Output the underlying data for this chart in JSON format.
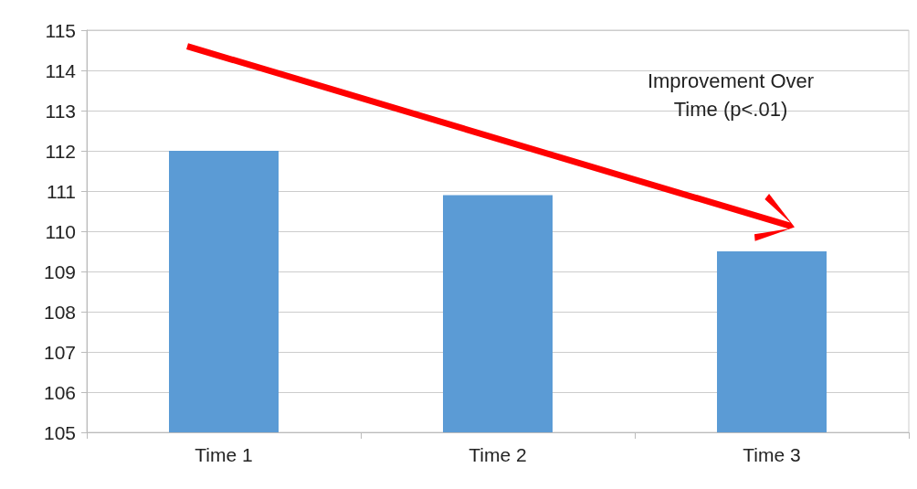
{
  "chart_data": {
    "type": "bar",
    "categories": [
      "Time 1",
      "Time 2",
      "Time 3"
    ],
    "values": [
      112.0,
      110.9,
      109.5
    ],
    "color": "#5b9bd5",
    "ylim": [
      105,
      115
    ],
    "yticks": [
      105,
      106,
      107,
      108,
      109,
      110,
      111,
      112,
      113,
      114,
      115
    ],
    "grid": "y",
    "annotations": [
      "Improvement Over Time (p<.01)"
    ]
  }
}
